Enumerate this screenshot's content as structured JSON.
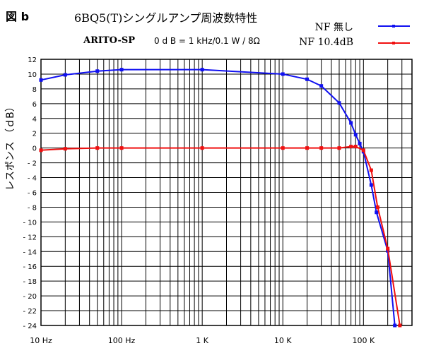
{
  "figure_label": "図 b",
  "chart_data": {
    "type": "line",
    "title": "6BQ5(T)シングルアンプ周波数特性",
    "subtitle_bold": "ARITO-SP",
    "subtitle": "0 d B = 1 kHz/0.1 W / 8Ω",
    "xlabel": "",
    "ylabel": "レスポンス （ｄB）",
    "xscale": "log",
    "xlim": [
      10,
      400000
    ],
    "ylim": [
      -24,
      12
    ],
    "grid": true,
    "legend_position": "top-right",
    "yticks": [
      12,
      10,
      8,
      6,
      4,
      2,
      0,
      -2,
      -4,
      -6,
      -8,
      -10,
      -12,
      -14,
      -16,
      -18,
      -20,
      -22,
      -24
    ],
    "ytick_labels": [
      "12",
      "10",
      "8",
      "6",
      "4",
      "2",
      "0",
      "- 2",
      "- 4",
      "- 6",
      "- 8",
      "- 10",
      "- 12",
      "- 14",
      "- 16",
      "- 18",
      "- 20",
      "- 22",
      "- 24"
    ],
    "xticks": [
      {
        "v": 10,
        "label": "10 Hz"
      },
      {
        "v": 100,
        "label": "100 Hz"
      },
      {
        "v": 1000,
        "label": "1 K"
      },
      {
        "v": 10000,
        "label": "10 K"
      },
      {
        "v": 100000,
        "label": "100 K"
      }
    ],
    "series": [
      {
        "name": "NF 無し",
        "color": "#1010f0",
        "x": [
          10,
          20,
          50,
          100,
          1000,
          10000,
          20000,
          30000,
          50000,
          70000,
          80000,
          90000,
          100000,
          125000,
          145000,
          200000,
          245000
        ],
        "y": [
          9.2,
          9.9,
          10.4,
          10.6,
          10.6,
          10.0,
          9.3,
          8.4,
          6.1,
          3.4,
          1.8,
          0.6,
          -0.5,
          -5.0,
          -8.7,
          -13.9,
          -24
        ]
      },
      {
        "name": "NF 10.4dB",
        "color": "#f01010",
        "x": [
          10,
          20,
          50,
          100,
          1000,
          10000,
          20000,
          30000,
          50000,
          70000,
          80000,
          100000,
          125000,
          150000,
          200000,
          283000
        ],
        "y": [
          -0.3,
          -0.1,
          0,
          0,
          0,
          0,
          0,
          0,
          0,
          0.2,
          0.2,
          -0.3,
          -3.0,
          -8.0,
          -13.6,
          -24
        ]
      }
    ]
  }
}
